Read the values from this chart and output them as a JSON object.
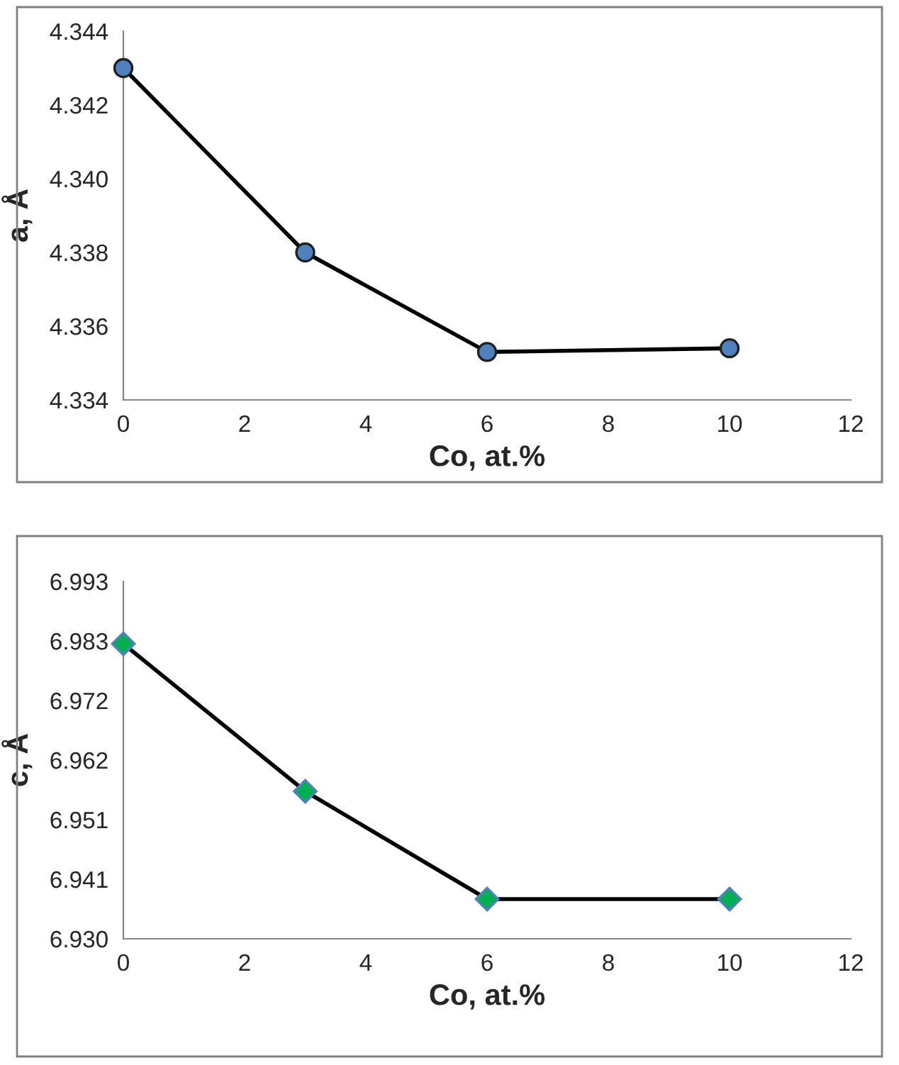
{
  "chart_data": [
    {
      "type": "line",
      "xlabel": "Co, at.%",
      "ylabel": "a, Å",
      "x": [
        0,
        3,
        6,
        10
      ],
      "series": [
        {
          "color": "#4f81bd",
          "values": [
            4.343,
            4.338,
            4.3353,
            4.3354
          ]
        }
      ],
      "marker": "circle",
      "line_style": "solid",
      "grid": false,
      "legend": false,
      "xlim": [
        0,
        12
      ],
      "xticks": [
        0,
        2,
        4,
        6,
        8,
        10,
        12
      ],
      "ylim": [
        4.334,
        4.344
      ],
      "yticks": [
        {
          "value": 4.334,
          "label": "4.334"
        },
        {
          "value": 4.336,
          "label": "4.336"
        },
        {
          "value": 4.338,
          "label": "4.338"
        },
        {
          "value": 4.34,
          "label": "4.340"
        },
        {
          "value": 4.342,
          "label": "4.342"
        },
        {
          "value": 4.344,
          "label": "4.344"
        }
      ]
    },
    {
      "type": "line",
      "xlabel": "Co, at.%",
      "ylabel": "c, Å",
      "x": [
        0,
        3,
        6,
        10
      ],
      "series": [
        {
          "color": "#00b050",
          "values": [
            6.982,
            6.956,
            6.937,
            6.937
          ]
        }
      ],
      "marker": "diamond",
      "line_style": "solid",
      "grid": false,
      "legend": false,
      "xlim": [
        0,
        12
      ],
      "xticks": [
        0,
        2,
        4,
        6,
        8,
        10,
        12
      ],
      "ylim": [
        6.93,
        6.993
      ],
      "yticks": [
        {
          "value": 6.93,
          "label": "6.930"
        },
        {
          "value": 6.9405,
          "label": "6.941"
        },
        {
          "value": 6.951,
          "label": "6.951"
        },
        {
          "value": 6.9615,
          "label": "6.962"
        },
        {
          "value": 6.972,
          "label": "6.972"
        },
        {
          "value": 6.9825,
          "label": "6.983"
        },
        {
          "value": 6.993,
          "label": "6.993"
        }
      ]
    }
  ]
}
